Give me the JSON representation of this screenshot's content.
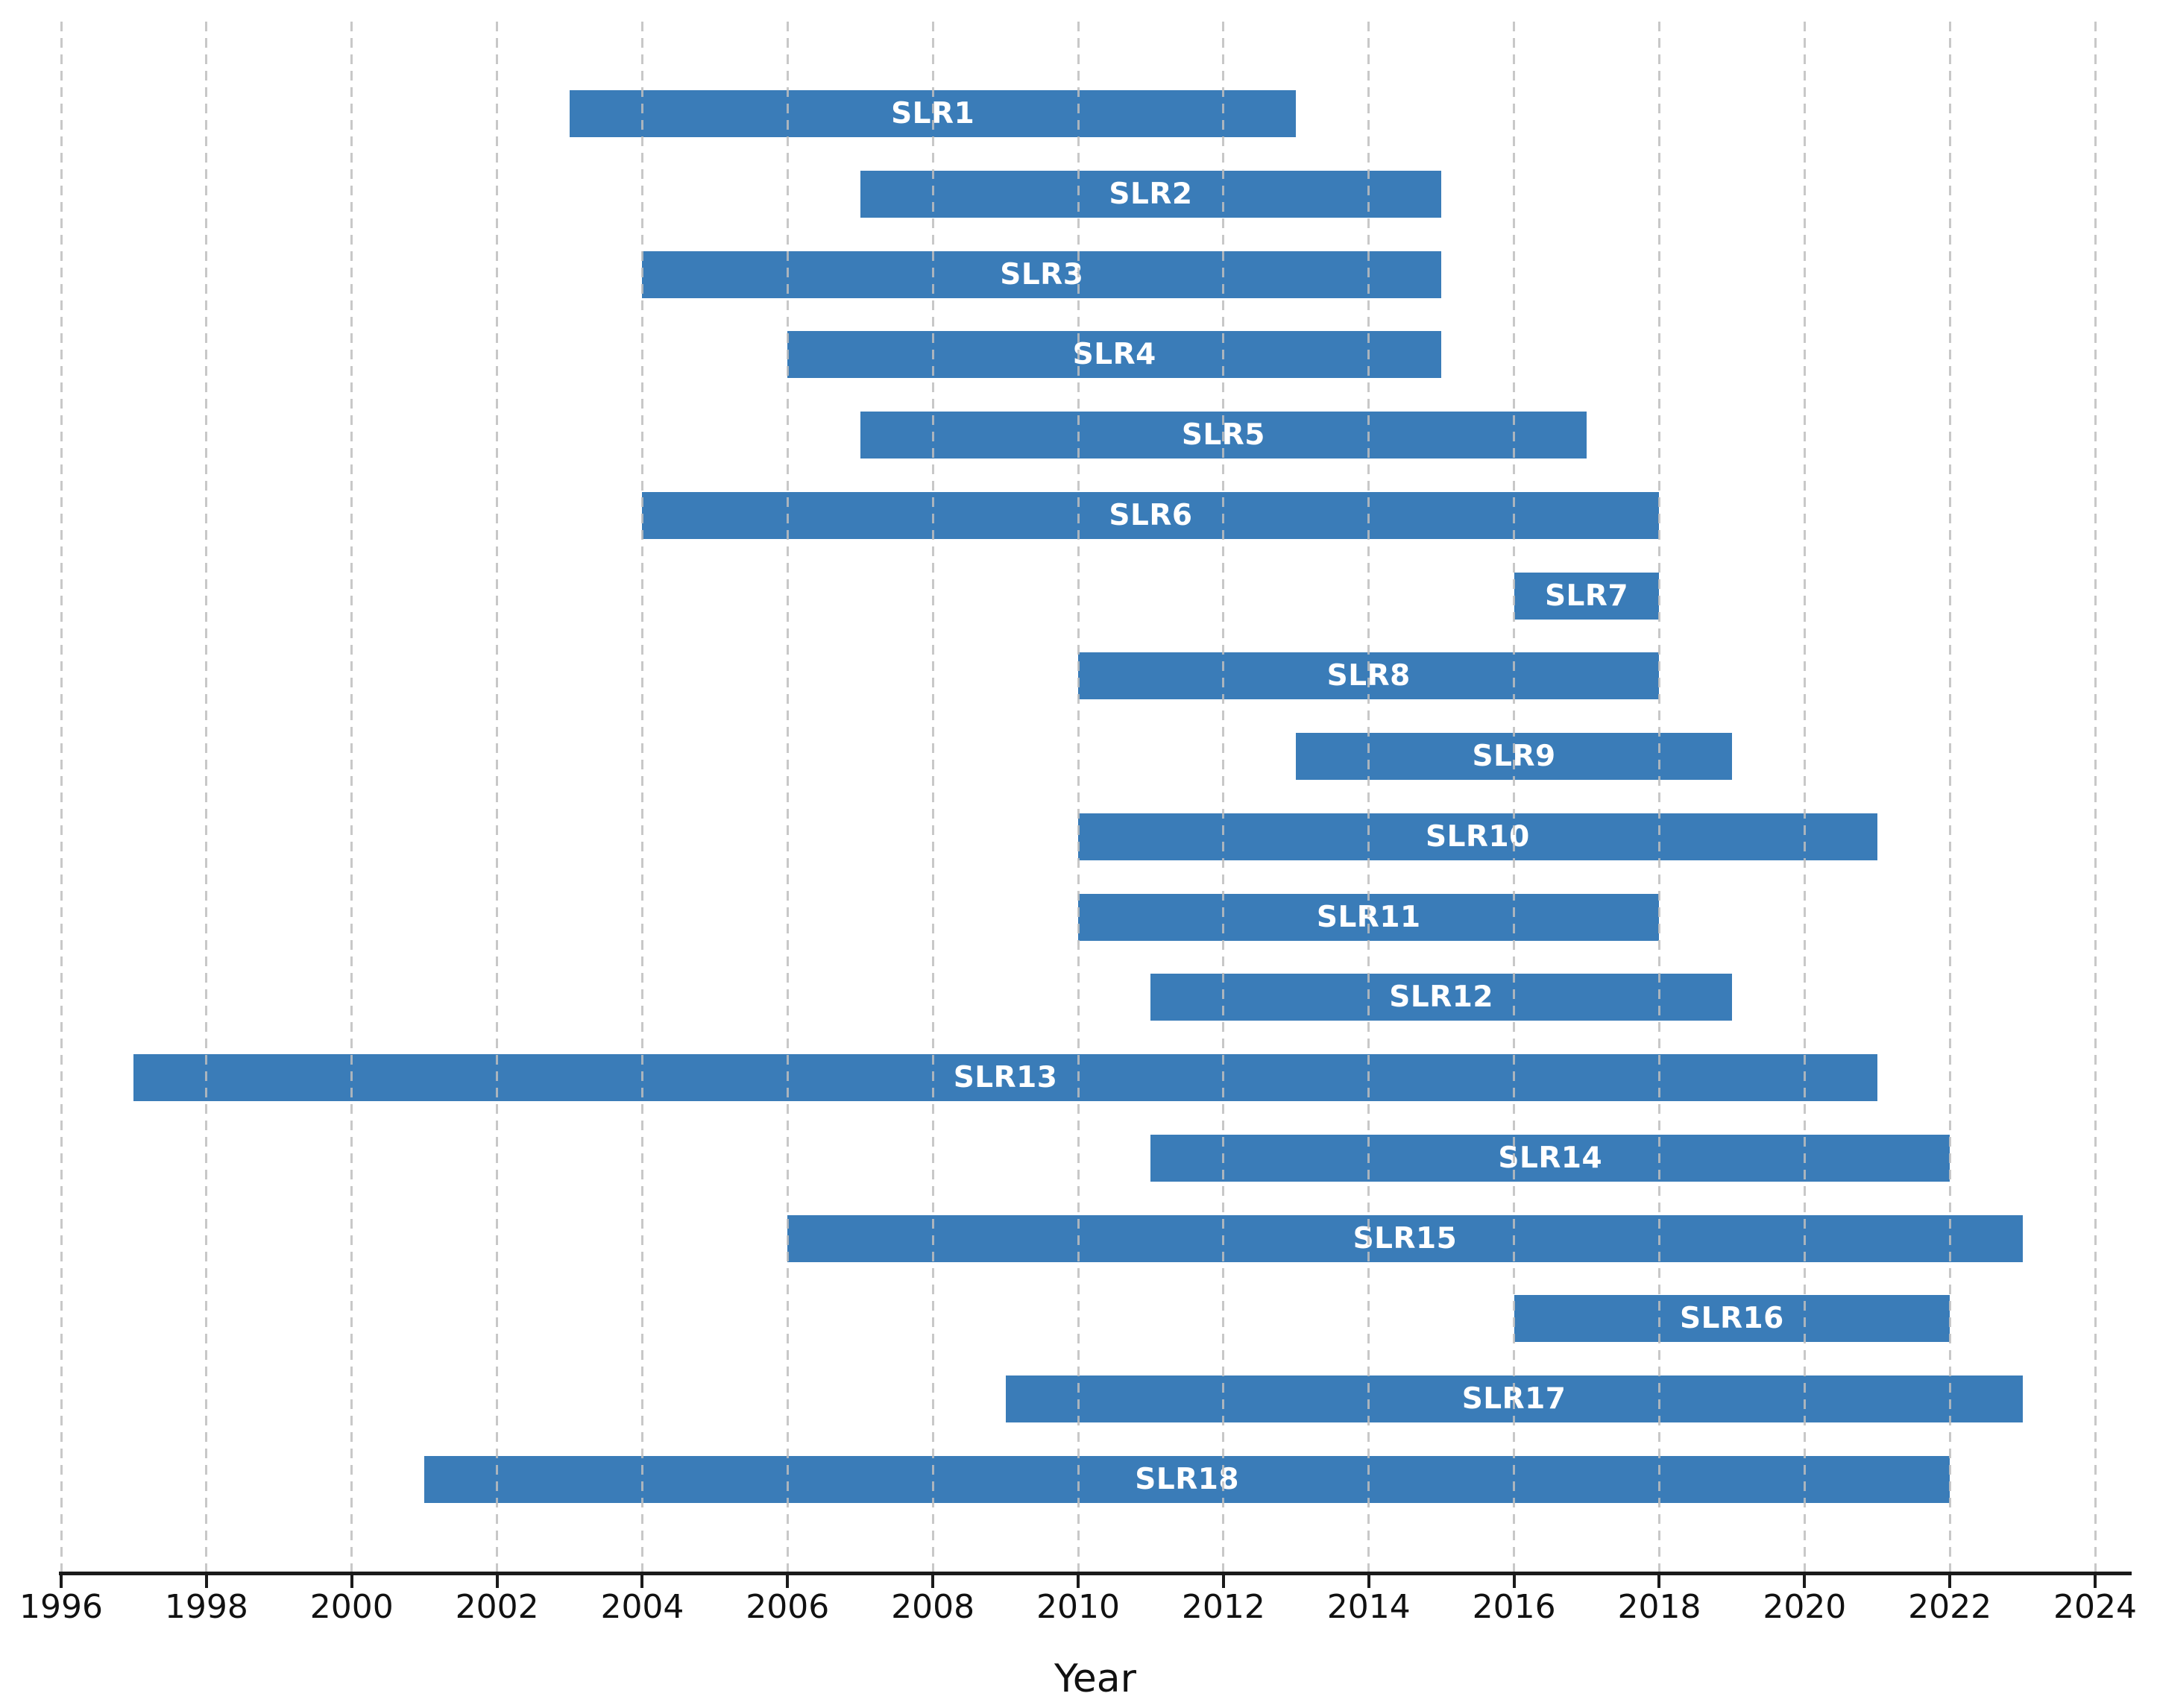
{
  "chart_data": {
    "type": "bar",
    "orientation": "horizontal",
    "title": "",
    "xlabel": "Year",
    "ylabel": "",
    "xlim": [
      1995.95,
      2024.55
    ],
    "x_tick_step": 2,
    "x_ticks": [
      1996,
      1998,
      2000,
      2002,
      2004,
      2006,
      2008,
      2010,
      2012,
      2014,
      2016,
      2018,
      2020,
      2022,
      2024
    ],
    "grid": {
      "axis": "x",
      "style": "dashed",
      "color": "#bebebe",
      "drawn_over_bars": true
    },
    "legend": "none",
    "bar_color": "#3a7cb8",
    "bar_label_color": "#ffffff",
    "series": [
      {
        "label": "SLR1",
        "start": 2003,
        "end": 2013
      },
      {
        "label": "SLR2",
        "start": 2007,
        "end": 2015
      },
      {
        "label": "SLR3",
        "start": 2004,
        "end": 2015
      },
      {
        "label": "SLR4",
        "start": 2006,
        "end": 2015
      },
      {
        "label": "SLR5",
        "start": 2007,
        "end": 2017
      },
      {
        "label": "SLR6",
        "start": 2004,
        "end": 2018
      },
      {
        "label": "SLR7",
        "start": 2016,
        "end": 2018
      },
      {
        "label": "SLR8",
        "start": 2010,
        "end": 2018
      },
      {
        "label": "SLR9",
        "start": 2013,
        "end": 2019
      },
      {
        "label": "SLR10",
        "start": 2010,
        "end": 2021
      },
      {
        "label": "SLR11",
        "start": 2010,
        "end": 2018
      },
      {
        "label": "SLR12",
        "start": 2011,
        "end": 2019
      },
      {
        "label": "SLR13",
        "start": 1997,
        "end": 2021
      },
      {
        "label": "SLR14",
        "start": 2011,
        "end": 2022
      },
      {
        "label": "SLR15",
        "start": 2006,
        "end": 2023
      },
      {
        "label": "SLR16",
        "start": 2016,
        "end": 2022
      },
      {
        "label": "SLR17",
        "start": 2009,
        "end": 2023
      },
      {
        "label": "SLR18",
        "start": 2001,
        "end": 2022
      }
    ]
  }
}
